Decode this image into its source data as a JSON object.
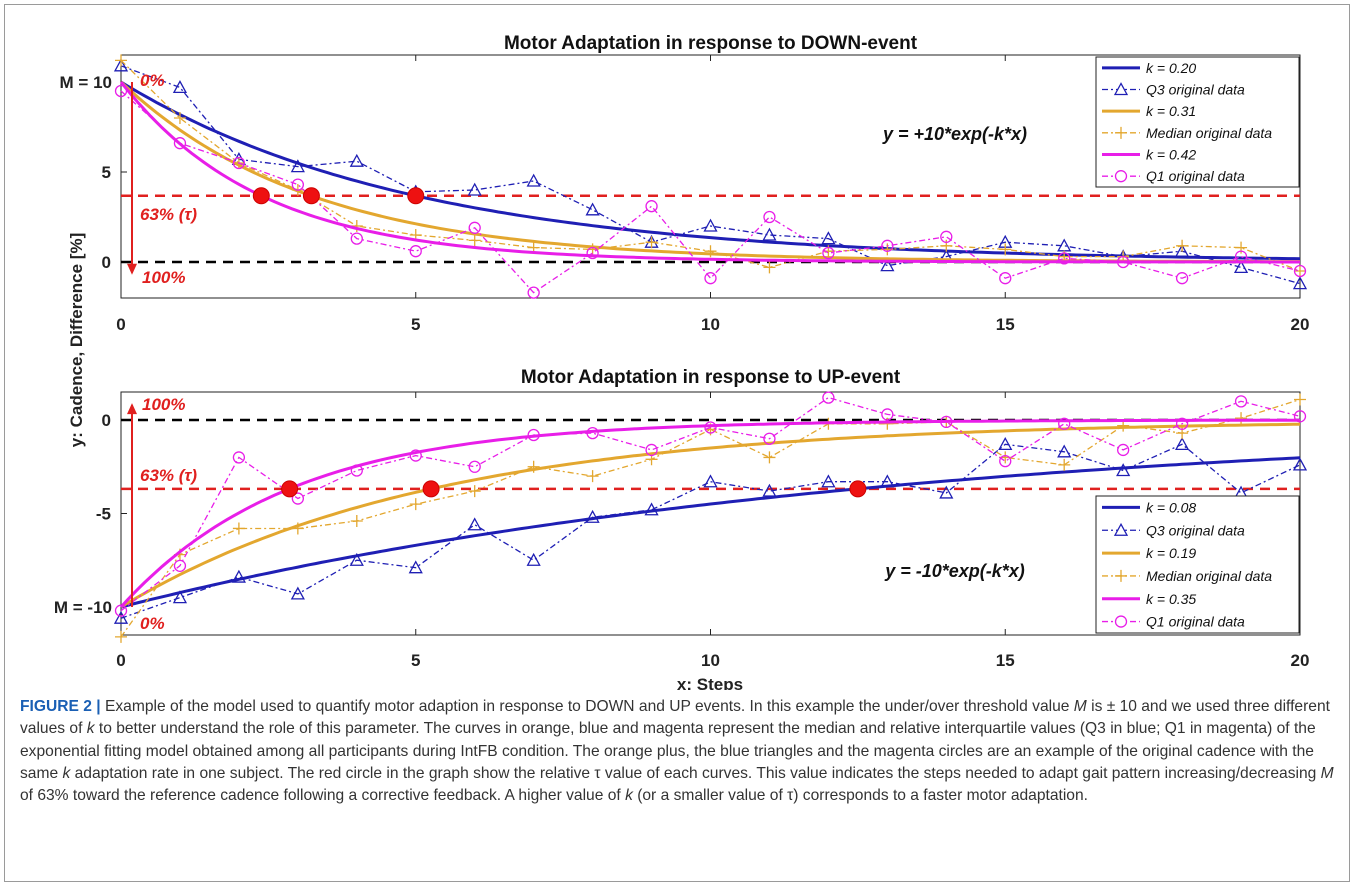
{
  "chart_data": [
    {
      "type": "line",
      "title": "Motor Adaptation in response to DOWN-event",
      "ylabel": "y: Cadence, Difference [%]",
      "xlim": [
        0,
        20
      ],
      "ylim": [
        -2,
        11.5
      ],
      "x_ticks": [
        "0",
        "5",
        "10",
        "15",
        "20"
      ],
      "y_ticks": [
        "0",
        "5"
      ],
      "equation": "y = +10*exp(-k*x)",
      "legend_position": "top-right",
      "x": [
        0,
        1,
        2,
        3,
        4,
        5,
        6,
        7,
        8,
        9,
        10,
        11,
        12,
        13,
        14,
        15,
        16,
        17,
        18,
        19,
        20
      ],
      "series": [
        {
          "name": "k = 0.20",
          "kind": "fit",
          "k": 0.2,
          "sign": 1,
          "color": "#1f1fb4"
        },
        {
          "name": "Q3 original data",
          "kind": "data",
          "marker": "triangle",
          "color": "#1f1fb4",
          "values": [
            10.9,
            9.7,
            5.7,
            5.3,
            5.6,
            3.9,
            4.0,
            4.5,
            2.9,
            1.1,
            2.0,
            1.5,
            1.3,
            -0.2,
            0.3,
            1.1,
            0.9,
            0.3,
            0.6,
            -0.3,
            -1.2
          ]
        },
        {
          "name": "k = 0.31",
          "kind": "fit",
          "k": 0.31,
          "sign": 1,
          "color": "#e3a72f"
        },
        {
          "name": "Median original data",
          "kind": "data",
          "marker": "plus",
          "color": "#e3a72f",
          "values": [
            11.2,
            8.0,
            5.5,
            4.0,
            2.0,
            1.5,
            1.2,
            0.8,
            0.7,
            1.1,
            0.6,
            -0.3,
            0.6,
            0.7,
            0.9,
            0.7,
            0.3,
            0.3,
            0.9,
            0.8,
            -0.5
          ]
        },
        {
          "name": "k = 0.42",
          "kind": "fit",
          "k": 0.42,
          "sign": 1,
          "color": "#e81ee8"
        },
        {
          "name": "Q1 original data",
          "kind": "data",
          "marker": "circle",
          "color": "#e81ee8",
          "values": [
            9.5,
            6.6,
            5.5,
            4.3,
            1.3,
            0.6,
            1.9,
            -1.7,
            0.5,
            3.1,
            -0.9,
            2.5,
            0.5,
            0.9,
            1.4,
            -0.9,
            0.2,
            0.0,
            -0.9,
            0.3,
            -0.5
          ]
        }
      ],
      "reference_lines": [
        {
          "y": 3.68,
          "color": "#e0201f",
          "style": "dashed"
        },
        {
          "y": 0,
          "color": "#000000",
          "style": "dashed"
        }
      ],
      "tau_markers": [
        {
          "x": 2.38,
          "y": 3.68
        },
        {
          "x": 3.23,
          "y": 3.68
        },
        {
          "x": 5.0,
          "y": 3.68
        }
      ],
      "annotations": {
        "m_label": "M = 10",
        "m_value": 10,
        "start_pct": "0%",
        "tau_label": "63% (τ)",
        "end_pct": "100%",
        "arrow_from": 10,
        "arrow_to": -0.6
      }
    },
    {
      "type": "line",
      "title": "Motor Adaptation in response to UP-event",
      "xlabel": "x: Steps",
      "xlim": [
        0,
        20
      ],
      "ylim": [
        -11.5,
        1.5
      ],
      "x_ticks": [
        "0",
        "5",
        "10",
        "15",
        "20"
      ],
      "y_ticks": [
        "0",
        "-5"
      ],
      "equation": "y = -10*exp(-k*x)",
      "legend_position": "bottom-right",
      "x": [
        0,
        1,
        2,
        3,
        4,
        5,
        6,
        7,
        8,
        9,
        10,
        11,
        12,
        13,
        14,
        15,
        16,
        17,
        18,
        19,
        20
      ],
      "series": [
        {
          "name": "k = 0.08",
          "kind": "fit",
          "k": 0.08,
          "sign": -1,
          "color": "#1f1fb4"
        },
        {
          "name": "Q3 original data",
          "kind": "data",
          "marker": "triangle",
          "color": "#1f1fb4",
          "values": [
            -10.6,
            -9.5,
            -8.4,
            -9.3,
            -7.5,
            -7.9,
            -5.6,
            -7.5,
            -5.2,
            -4.8,
            -3.3,
            -3.8,
            -3.3,
            -3.3,
            -3.9,
            -1.3,
            -1.7,
            -2.7,
            -1.3,
            -3.9,
            -2.4
          ]
        },
        {
          "name": "k = 0.19",
          "kind": "fit",
          "k": 0.19,
          "sign": -1,
          "color": "#e3a72f"
        },
        {
          "name": "Median original data",
          "kind": "data",
          "marker": "plus",
          "color": "#e3a72f",
          "values": [
            -11.6,
            -7.2,
            -5.8,
            -5.8,
            -5.4,
            -4.5,
            -3.8,
            -2.5,
            -3.0,
            -2.1,
            -0.5,
            -2.0,
            -0.2,
            -0.2,
            -0.1,
            -2.0,
            -2.4,
            -0.3,
            -0.7,
            0.1,
            1.1
          ]
        },
        {
          "name": "k = 0.35",
          "kind": "fit",
          "k": 0.35,
          "sign": -1,
          "color": "#e81ee8"
        },
        {
          "name": "Q1 original data",
          "kind": "data",
          "marker": "circle",
          "color": "#e81ee8",
          "values": [
            -10.2,
            -7.8,
            -2.0,
            -4.2,
            -2.7,
            -1.9,
            -2.5,
            -0.8,
            -0.7,
            -1.6,
            -0.4,
            -1.0,
            1.2,
            0.3,
            -0.1,
            -2.2,
            -0.2,
            -1.6,
            -0.2,
            1.0,
            0.2
          ]
        }
      ],
      "reference_lines": [
        {
          "y": 0,
          "color": "#000000",
          "style": "dashed"
        },
        {
          "y": -3.68,
          "color": "#e0201f",
          "style": "dashed"
        }
      ],
      "tau_markers": [
        {
          "x": 2.86,
          "y": -3.68
        },
        {
          "x": 5.26,
          "y": -3.68
        },
        {
          "x": 12.5,
          "y": -3.68
        }
      ],
      "annotations": {
        "m_label": "M = -10",
        "m_value": -10,
        "start_pct": "0%",
        "tau_label": "63% (τ)",
        "end_pct": "100%",
        "arrow_from": -10,
        "arrow_to": 0.8
      }
    }
  ],
  "caption": {
    "figure_label": "FIGURE 2 |",
    "part1": " Example of the model used to quantify motor adaption in response to DOWN and UP events. In this example the under/over threshold value ",
    "m_symbol": "M",
    "part2": " is ± 10 and we used three different values of ",
    "k_symbol": "k",
    "part3": " to better understand the role of this parameter. The curves in orange, blue and magenta represent the median and relative interquartile values (Q3 in blue; Q1 in magenta) of the exponential fitting model obtained among all participants during IntFB condition. The orange plus, the blue triangles and the magenta circles are an example of the original cadence with the same ",
    "k_symbol_2": "k",
    "part4": " adaptation rate in one subject. The red circle in the graph show the relative τ value of each curves. This value indicates the steps needed to adapt gait pattern increasing/decreasing ",
    "m_symbol_2": "M",
    "part5": " of 63% toward the reference cadence following a corrective feedback. A higher value of ",
    "k_symbol_3": "k",
    "part6": " (or a smaller value of τ) corresponds to a faster motor adaptation."
  }
}
